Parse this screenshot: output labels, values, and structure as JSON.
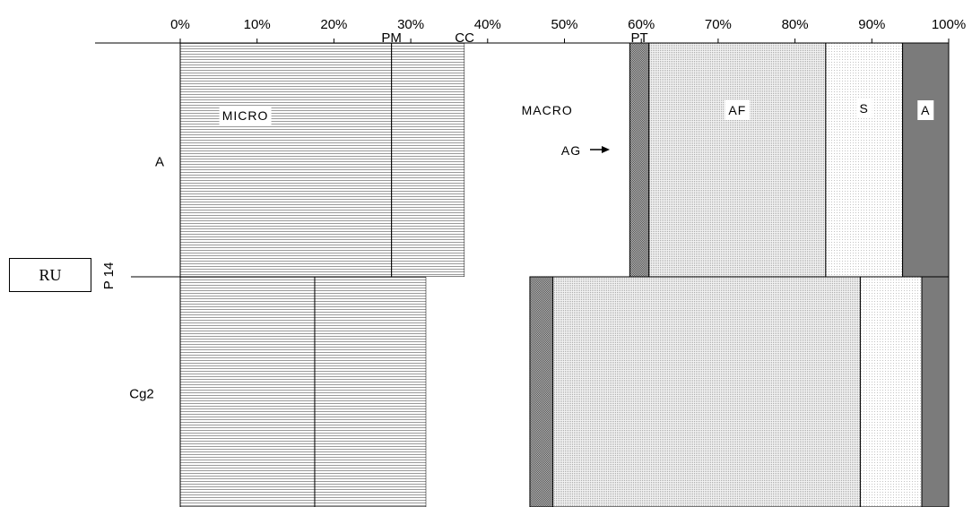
{
  "chart_data": {
    "type": "bar",
    "orientation": "horizontal",
    "stacked": "100%",
    "x_ticks": [
      "0%",
      "10%",
      "20%",
      "30%",
      "40%",
      "50%",
      "60%",
      "70%",
      "80%",
      "90%",
      "100%"
    ],
    "xlim": [
      0,
      100
    ],
    "group_label": "RU",
    "subgroup_label": "P 14",
    "categories": [
      "A",
      "Cg2"
    ],
    "series": [
      {
        "name": "PM",
        "pattern": "horizontal-lines",
        "values": [
          27.5,
          17.5
        ]
      },
      {
        "name": "CC",
        "pattern": "horizontal-lines",
        "values": [
          9.5,
          14.5
        ]
      },
      {
        "name": "MACRO",
        "pattern": "none",
        "values": [
          21.5,
          13.5
        ]
      },
      {
        "name": "PT",
        "pattern": "dense-dots",
        "values": [
          2.5,
          3.0
        ]
      },
      {
        "name": "AF",
        "pattern": "fine-dots",
        "values": [
          23.0,
          40.0
        ]
      },
      {
        "name": "S",
        "pattern": "sparse-dots",
        "values": [
          10.0,
          8.0
        ]
      },
      {
        "name": "A",
        "pattern": "solid",
        "values": [
          6.0,
          3.5
        ]
      }
    ],
    "annotations": {
      "micro": "MICRO",
      "macro": "MACRO",
      "ag": "AG",
      "af": "AF",
      "s": "S",
      "a": "A"
    },
    "colors": {
      "lines": "#999999",
      "dense_dots": "#8c8c8c",
      "fine_dots": "#c8c8c8",
      "sparse_dots": "#dddddd",
      "solid": "#7b7b7b"
    }
  }
}
